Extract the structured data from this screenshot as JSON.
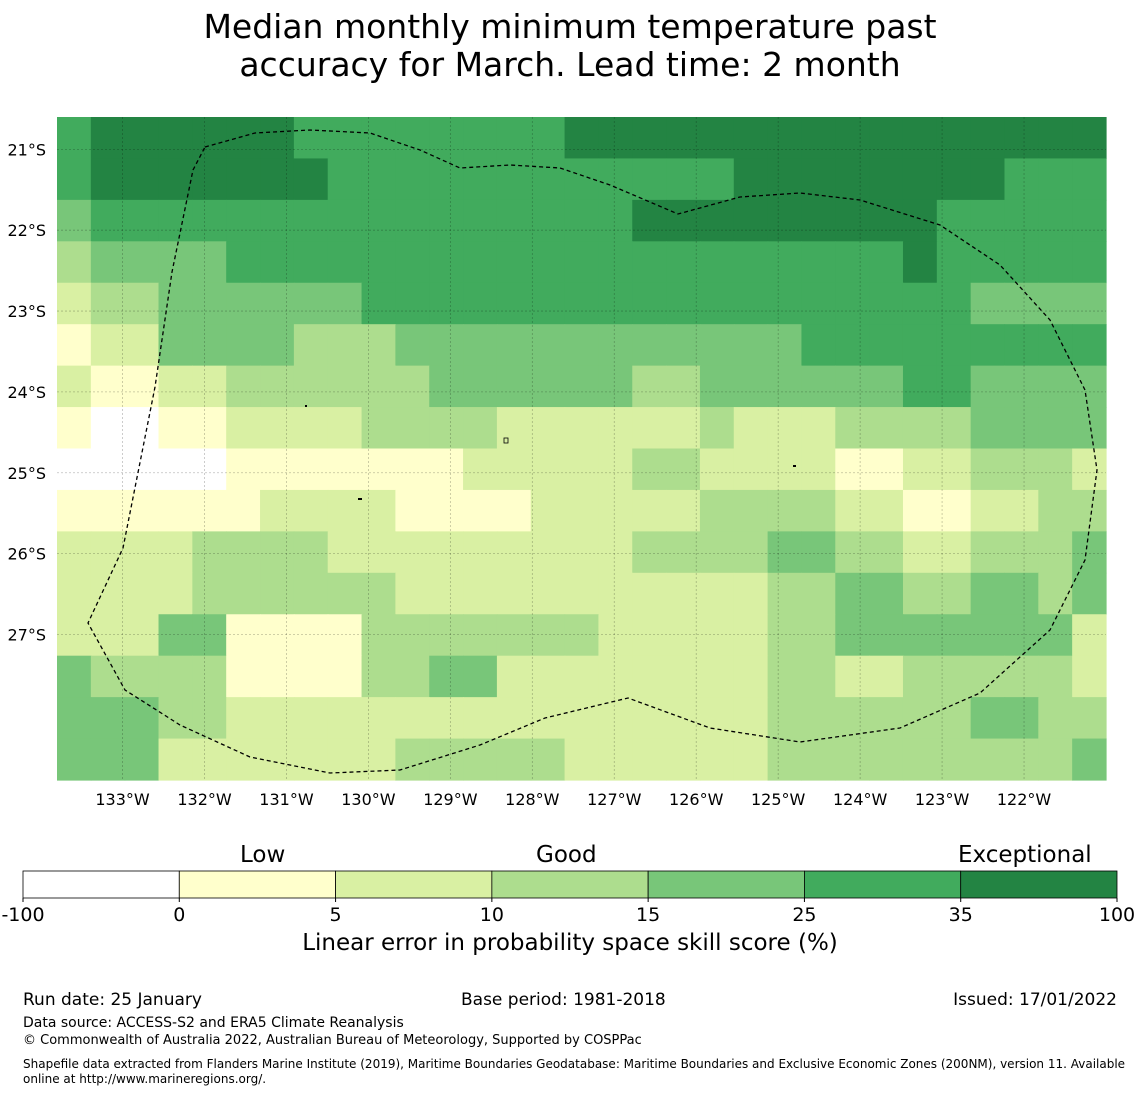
{
  "title_lines": [
    "Median monthly minimum temperature past",
    "accuracy for March. Lead time: 2 month"
  ],
  "chart_data": {
    "type": "heatmap",
    "title": "Median monthly minimum temperature past accuracy for March. Lead time: 2 month",
    "lon_range": [
      -133.8,
      -121.0
    ],
    "lat_range": [
      -20.6,
      -28.8
    ],
    "grid": true,
    "x_ticks": [
      {
        "lon": -133,
        "label": "133°W"
      },
      {
        "lon": -132,
        "label": "132°W"
      },
      {
        "lon": -131,
        "label": "131°W"
      },
      {
        "lon": -130,
        "label": "130°W"
      },
      {
        "lon": -129,
        "label": "129°W"
      },
      {
        "lon": -128,
        "label": "128°W"
      },
      {
        "lon": -127,
        "label": "127°W"
      },
      {
        "lon": -126,
        "label": "126°W"
      },
      {
        "lon": -125,
        "label": "125°W"
      },
      {
        "lon": -124,
        "label": "124°W"
      },
      {
        "lon": -123,
        "label": "123°W"
      },
      {
        "lon": -122,
        "label": "122°W"
      }
    ],
    "y_ticks": [
      {
        "lat": -21,
        "label": "21°S"
      },
      {
        "lat": -22,
        "label": "22°S"
      },
      {
        "lat": -23,
        "label": "23°S"
      },
      {
        "lat": -24,
        "label": "24°S"
      },
      {
        "lat": -25,
        "label": "25°S"
      },
      {
        "lat": -26,
        "label": "26°S"
      },
      {
        "lat": -27,
        "label": "27°S"
      }
    ],
    "class_codes": "0=-100..0, 1=0..5, 2=5..10, 3=10..15, 4=15..25, 5=25..35, 6=35..100",
    "grid_classes": [
      [
        5,
        6,
        6,
        6,
        6,
        6,
        6,
        5,
        5,
        5,
        5,
        5,
        5,
        5,
        5,
        6,
        6,
        6,
        6,
        6,
        6,
        6,
        6,
        6,
        6,
        6,
        6,
        6,
        6,
        6,
        6
      ],
      [
        5,
        6,
        6,
        6,
        6,
        6,
        6,
        6,
        5,
        5,
        5,
        5,
        5,
        5,
        5,
        5,
        5,
        5,
        5,
        5,
        6,
        6,
        6,
        6,
        6,
        6,
        6,
        6,
        5,
        5,
        5
      ],
      [
        4,
        5,
        5,
        5,
        5,
        5,
        5,
        5,
        5,
        5,
        5,
        5,
        5,
        5,
        5,
        5,
        5,
        6,
        6,
        6,
        6,
        6,
        6,
        6,
        6,
        6,
        5,
        5,
        5,
        5,
        5
      ],
      [
        3,
        4,
        4,
        4,
        4,
        5,
        5,
        5,
        5,
        5,
        5,
        5,
        5,
        5,
        5,
        5,
        5,
        5,
        5,
        5,
        5,
        5,
        5,
        5,
        5,
        6,
        5,
        5,
        5,
        5,
        5
      ],
      [
        2,
        3,
        3,
        4,
        4,
        4,
        4,
        4,
        4,
        5,
        5,
        5,
        5,
        5,
        5,
        5,
        5,
        5,
        5,
        5,
        5,
        5,
        5,
        5,
        5,
        5,
        5,
        4,
        4,
        4,
        4
      ],
      [
        1,
        2,
        2,
        4,
        4,
        4,
        4,
        3,
        3,
        3,
        4,
        4,
        4,
        4,
        4,
        4,
        4,
        4,
        4,
        4,
        4,
        4,
        5,
        5,
        5,
        5,
        5,
        5,
        5,
        5,
        5
      ],
      [
        2,
        1,
        1,
        2,
        2,
        3,
        3,
        3,
        3,
        3,
        3,
        4,
        4,
        4,
        4,
        4,
        4,
        3,
        3,
        4,
        4,
        4,
        4,
        4,
        4,
        5,
        5,
        4,
        4,
        4,
        4
      ],
      [
        1,
        0,
        0,
        1,
        1,
        2,
        2,
        2,
        2,
        3,
        3,
        3,
        3,
        2,
        2,
        2,
        2,
        2,
        2,
        3,
        2,
        2,
        2,
        3,
        3,
        3,
        3,
        4,
        4,
        4,
        4
      ],
      [
        0,
        0,
        0,
        0,
        0,
        1,
        1,
        1,
        1,
        1,
        1,
        1,
        2,
        2,
        2,
        2,
        2,
        3,
        3,
        2,
        2,
        2,
        2,
        1,
        1,
        2,
        2,
        3,
        3,
        3,
        2
      ],
      [
        1,
        1,
        1,
        1,
        1,
        1,
        2,
        2,
        2,
        2,
        1,
        1,
        1,
        1,
        2,
        2,
        2,
        2,
        2,
        3,
        3,
        3,
        3,
        2,
        2,
        1,
        1,
        2,
        2,
        3,
        3
      ],
      [
        2,
        2,
        2,
        2,
        3,
        3,
        3,
        3,
        2,
        2,
        2,
        2,
        2,
        2,
        2,
        2,
        2,
        3,
        3,
        3,
        3,
        4,
        4,
        3,
        3,
        2,
        2,
        3,
        3,
        3,
        4
      ],
      [
        2,
        2,
        2,
        2,
        3,
        3,
        3,
        3,
        3,
        3,
        2,
        2,
        2,
        2,
        2,
        2,
        2,
        2,
        2,
        2,
        2,
        3,
        3,
        4,
        4,
        3,
        3,
        4,
        4,
        3,
        4
      ],
      [
        2,
        2,
        2,
        4,
        4,
        1,
        1,
        1,
        1,
        3,
        3,
        3,
        3,
        3,
        3,
        3,
        2,
        2,
        2,
        2,
        2,
        3,
        3,
        4,
        4,
        4,
        4,
        4,
        4,
        4,
        2
      ],
      [
        4,
        3,
        3,
        3,
        3,
        1,
        1,
        1,
        1,
        3,
        3,
        4,
        4,
        2,
        2,
        2,
        2,
        2,
        2,
        2,
        2,
        3,
        3,
        2,
        2,
        3,
        3,
        3,
        3,
        3,
        2
      ],
      [
        4,
        4,
        4,
        3,
        3,
        2,
        2,
        2,
        2,
        2,
        2,
        2,
        2,
        2,
        2,
        2,
        2,
        2,
        2,
        2,
        2,
        3,
        3,
        3,
        3,
        3,
        3,
        4,
        4,
        3,
        3
      ],
      [
        4,
        4,
        4,
        2,
        2,
        2,
        2,
        2,
        2,
        2,
        3,
        3,
        3,
        3,
        3,
        2,
        2,
        2,
        2,
        2,
        2,
        3,
        3,
        3,
        3,
        3,
        3,
        3,
        3,
        3,
        4
      ]
    ],
    "region": "dashed outline of Exclusive Economic Zone (200NM)"
  },
  "colorbar": {
    "colors": [
      "#ffffff",
      "#ffffcc",
      "#d9f0a3",
      "#addd8e",
      "#78c679",
      "#41ab5d",
      "#238443"
    ],
    "tick_labels": [
      "-100",
      "0",
      "5",
      "10",
      "15",
      "25",
      "35",
      "100"
    ],
    "category_labels": [
      "Low",
      "Good",
      "Exceptional"
    ],
    "label": "Linear error in probability space skill score (%)"
  },
  "footer": {
    "run_date": "Run date: 25 January",
    "base_period": "Base period: 1981-2018",
    "issued": "Issued: 17/01/2022",
    "data_source": "Data source: ACCESS-S2 and ERA5 Climate Reanalysis",
    "copyright": "© Commonwealth of Australia 2022, Australian Bureau of Meteorology, Supported by COSPPac",
    "shapefile_note": "Shapefile data extracted from Flanders Marine Institute (2019), Maritime Boundaries Geodatabase: Maritime Boundaries and Exclusive Economic Zones (200NM), version 11. Available online at http://www.marineregions.org/."
  }
}
